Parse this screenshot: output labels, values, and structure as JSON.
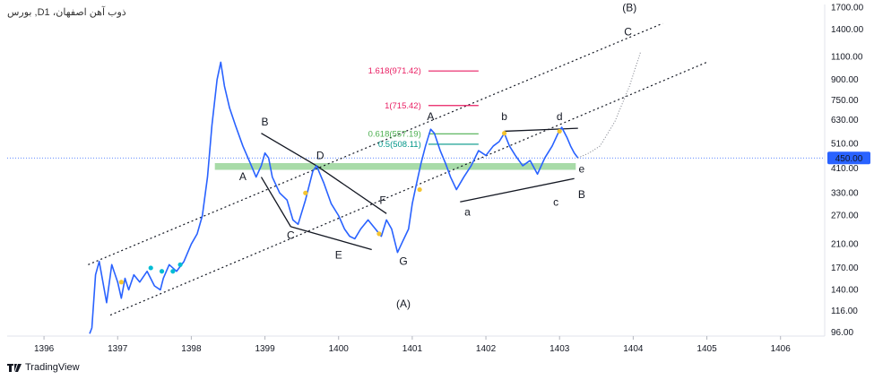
{
  "header": {
    "title": "بورس ,Dذوب آهن اصفهان، 1"
  },
  "brand": {
    "name": "TradingView"
  },
  "colors": {
    "line": "#2962ff",
    "zone": "#a8dba8",
    "fib_red": "#e91e63",
    "fib_green": "#4caf50",
    "teal": "#009688",
    "price_tag": "#2962ff"
  },
  "chart_data": {
    "type": "line",
    "scale": "log",
    "ylim": [
      93,
      1750
    ],
    "xlim": [
      1395.5,
      1406.6
    ],
    "x_ticks": [
      "1396",
      "1397",
      "1398",
      "1399",
      "1400",
      "1401",
      "1402",
      "1403",
      "1404",
      "1405",
      "1406"
    ],
    "y_ticks": [
      "1700.00",
      "1400.00",
      "1100.00",
      "900.00",
      "750.00",
      "630.00",
      "510.00",
      "410.00",
      "330.00",
      "270.00",
      "210.00",
      "170.00",
      "140.00",
      "116.00",
      "96.00"
    ],
    "last_price": "450.00",
    "series": [
      {
        "points": [
          [
            1396.62,
            95
          ],
          [
            1396.65,
            100
          ],
          [
            1396.7,
            160
          ],
          [
            1396.75,
            180
          ],
          [
            1396.8,
            150
          ],
          [
            1396.85,
            125
          ],
          [
            1396.92,
            175
          ],
          [
            1397.0,
            150
          ],
          [
            1397.05,
            130
          ],
          [
            1397.1,
            155
          ],
          [
            1397.15,
            140
          ],
          [
            1397.22,
            160
          ],
          [
            1397.3,
            150
          ],
          [
            1397.4,
            165
          ],
          [
            1397.5,
            145
          ],
          [
            1397.58,
            140
          ],
          [
            1397.62,
            155
          ],
          [
            1397.7,
            175
          ],
          [
            1397.8,
            165
          ],
          [
            1397.9,
            180
          ],
          [
            1398.0,
            210
          ],
          [
            1398.08,
            230
          ],
          [
            1398.15,
            270
          ],
          [
            1398.22,
            380
          ],
          [
            1398.28,
            600
          ],
          [
            1398.35,
            900
          ],
          [
            1398.4,
            1050
          ],
          [
            1398.45,
            850
          ],
          [
            1398.52,
            700
          ],
          [
            1398.6,
            600
          ],
          [
            1398.7,
            500
          ],
          [
            1398.8,
            430
          ],
          [
            1398.88,
            380
          ],
          [
            1398.95,
            420
          ],
          [
            1399.0,
            470
          ],
          [
            1399.05,
            450
          ],
          [
            1399.1,
            380
          ],
          [
            1399.2,
            330
          ],
          [
            1399.3,
            310
          ],
          [
            1399.38,
            260
          ],
          [
            1399.45,
            250
          ],
          [
            1399.55,
            310
          ],
          [
            1399.65,
            400
          ],
          [
            1399.7,
            420
          ],
          [
            1399.8,
            360
          ],
          [
            1399.9,
            300
          ],
          [
            1400.0,
            270
          ],
          [
            1400.08,
            240
          ],
          [
            1400.15,
            225
          ],
          [
            1400.22,
            220
          ],
          [
            1400.3,
            240
          ],
          [
            1400.4,
            260
          ],
          [
            1400.5,
            240
          ],
          [
            1400.58,
            225
          ],
          [
            1400.65,
            260
          ],
          [
            1400.72,
            240
          ],
          [
            1400.8,
            195
          ],
          [
            1400.87,
            215
          ],
          [
            1400.95,
            240
          ],
          [
            1401.0,
            300
          ],
          [
            1401.05,
            350
          ],
          [
            1401.12,
            430
          ],
          [
            1401.18,
            500
          ],
          [
            1401.25,
            580
          ],
          [
            1401.3,
            560
          ],
          [
            1401.38,
            480
          ],
          [
            1401.45,
            430
          ],
          [
            1401.52,
            380
          ],
          [
            1401.6,
            340
          ],
          [
            1401.7,
            380
          ],
          [
            1401.8,
            420
          ],
          [
            1401.9,
            480
          ],
          [
            1402.0,
            460
          ],
          [
            1402.1,
            500
          ],
          [
            1402.18,
            520
          ],
          [
            1402.25,
            560
          ],
          [
            1402.32,
            500
          ],
          [
            1402.4,
            460
          ],
          [
            1402.5,
            420
          ],
          [
            1402.6,
            440
          ],
          [
            1402.7,
            390
          ],
          [
            1402.8,
            450
          ],
          [
            1402.9,
            500
          ],
          [
            1402.98,
            560
          ],
          [
            1403.03,
            590
          ],
          [
            1403.1,
            540
          ],
          [
            1403.15,
            500
          ],
          [
            1403.2,
            470
          ],
          [
            1403.25,
            450
          ]
        ]
      }
    ],
    "projection": [
      [
        1403.25,
        450
      ],
      [
        1403.4,
        470
      ],
      [
        1403.55,
        500
      ],
      [
        1403.75,
        620
      ],
      [
        1403.95,
        850
      ],
      [
        1404.1,
        1150
      ]
    ],
    "fib_levels": [
      {
        "label": "1.618(971.42)",
        "value": 971.42,
        "color": "#e91e63"
      },
      {
        "label": "1(715.42)",
        "value": 715.42,
        "color": "#e91e63"
      },
      {
        "label": "0.618(557.19)",
        "value": 557.19,
        "color": "#4caf50"
      },
      {
        "label": "0.5(508.11)",
        "value": 508.11,
        "color": "#009688"
      }
    ],
    "wave_labels": [
      "A",
      "B",
      "C",
      "D",
      "E",
      "F",
      "G",
      "(A)",
      "A",
      "a",
      "b",
      "c",
      "d",
      "e",
      "B",
      "(B)",
      "C"
    ]
  }
}
